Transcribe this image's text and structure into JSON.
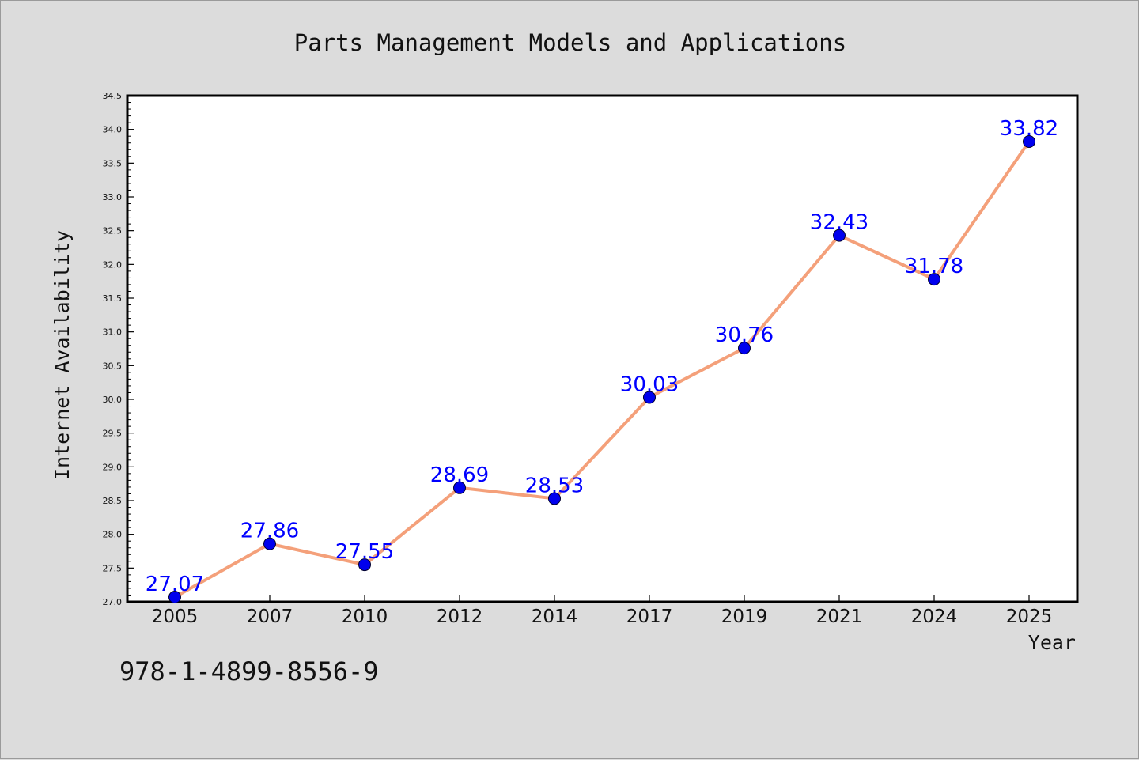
{
  "isbn": "978-1-4899-8556-9",
  "chart_data": {
    "type": "line",
    "title": "Parts Management Models and Applications",
    "xlabel": "Year",
    "ylabel": "Internet Availability",
    "categories": [
      "2005",
      "2007",
      "2010",
      "2012",
      "2014",
      "2017",
      "2019",
      "2021",
      "2024",
      "2025"
    ],
    "values": [
      27.07,
      27.86,
      27.55,
      28.69,
      28.53,
      30.03,
      30.76,
      32.43,
      31.78,
      33.82
    ],
    "data_labels": [
      "27.07",
      "27.86",
      "27.55",
      "28.69",
      "28.53",
      "30.03",
      "30.76",
      "32.43",
      "31.78",
      "33.82"
    ],
    "ylim": [
      27.0,
      34.5
    ],
    "yticks": [
      "27.0",
      "27.5",
      "28.0",
      "28.5",
      "29.0",
      "29.5",
      "30.0",
      "30.5",
      "31.0",
      "31.5",
      "32.0",
      "32.5",
      "33.0",
      "33.5",
      "34.0",
      "34.5"
    ],
    "grid": false,
    "legend": "none",
    "colors": {
      "line": "#f4a07a",
      "marker": "#0000ee",
      "label": "#0000ff",
      "background": "#dcdcdc",
      "plot_bg": "#ffffff"
    }
  }
}
